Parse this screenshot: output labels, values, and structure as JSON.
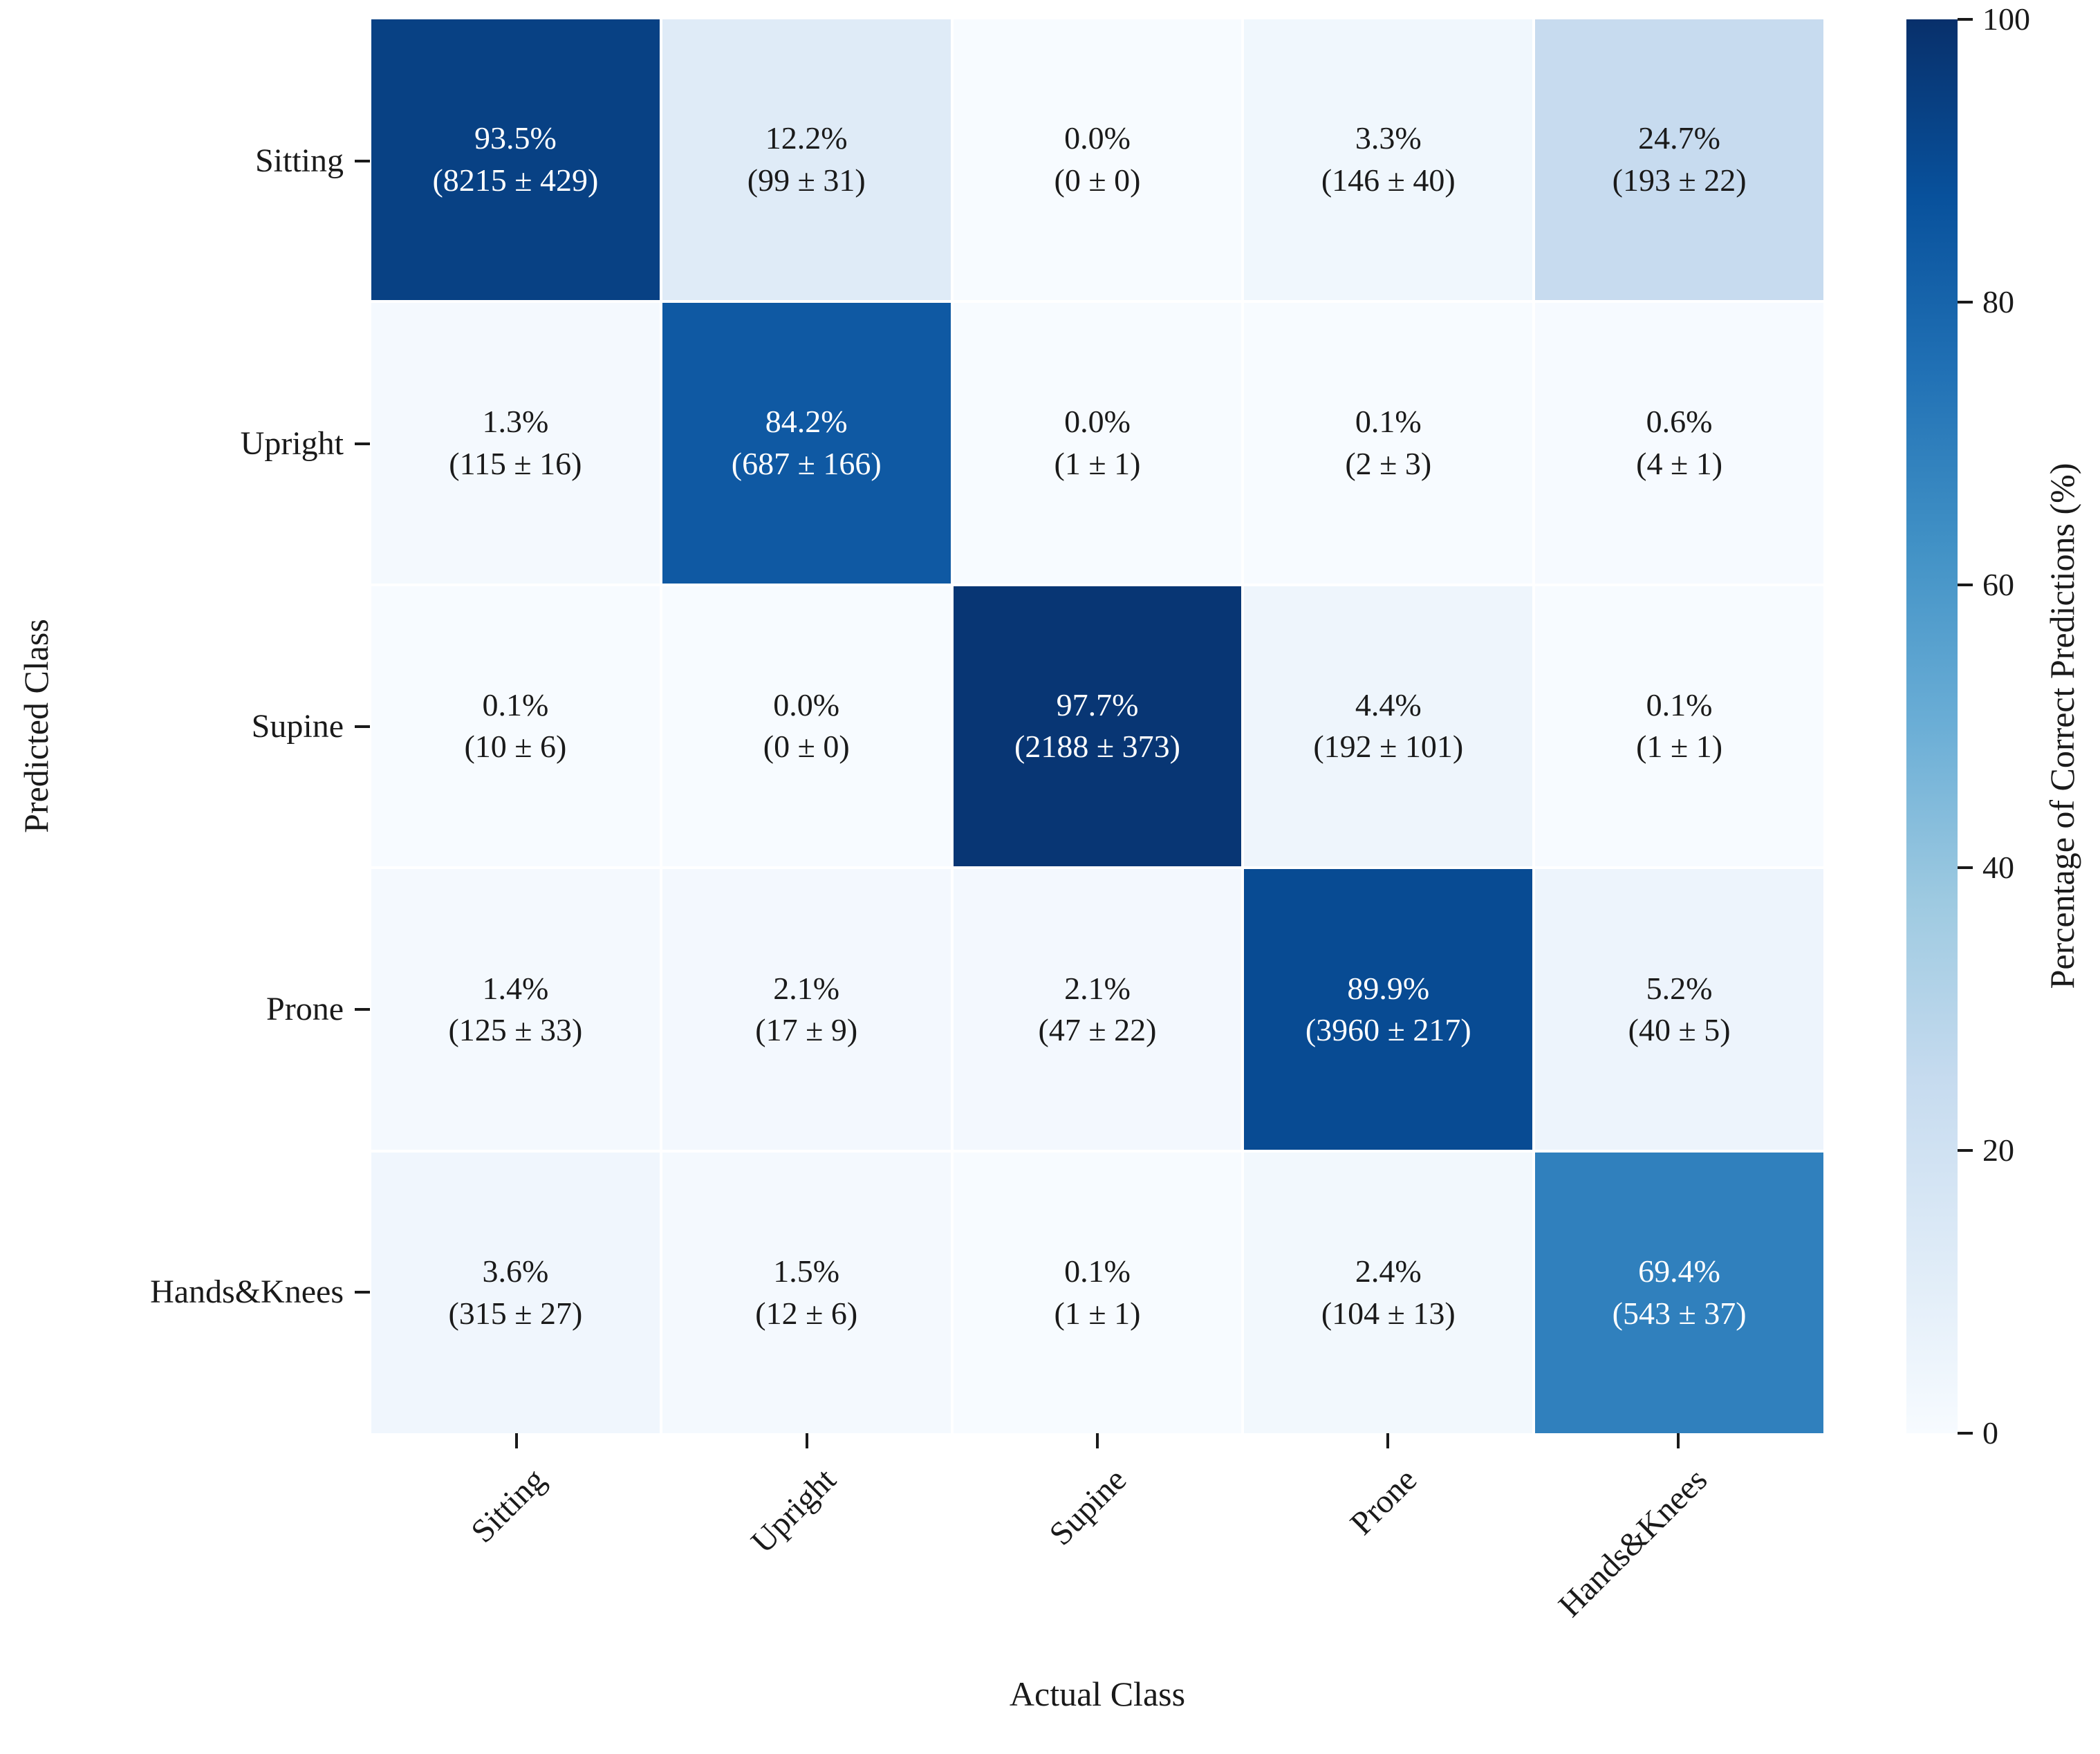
{
  "chart_data": {
    "type": "heatmap",
    "title": "",
    "xlabel": "Actual Class",
    "ylabel": "Predicted Class",
    "rows": [
      "Sitting",
      "Upright",
      "Supine",
      "Prone",
      "Hands&Knees"
    ],
    "cols": [
      "Sitting",
      "Upright",
      "Supine",
      "Prone",
      "Hands&Knees"
    ],
    "cell_value_format": "percent (count ± std)",
    "cells": [
      [
        [
          93.5,
          8215,
          429
        ],
        [
          12.2,
          99,
          31
        ],
        [
          0.0,
          0,
          0
        ],
        [
          3.3,
          146,
          40
        ],
        [
          24.7,
          193,
          22
        ]
      ],
      [
        [
          1.3,
          115,
          16
        ],
        [
          84.2,
          687,
          166
        ],
        [
          0.0,
          1,
          1
        ],
        [
          0.1,
          2,
          3
        ],
        [
          0.6,
          4,
          1
        ]
      ],
      [
        [
          0.1,
          10,
          6
        ],
        [
          0.0,
          0,
          0
        ],
        [
          97.7,
          2188,
          373
        ],
        [
          4.4,
          192,
          101
        ],
        [
          0.1,
          1,
          1
        ]
      ],
      [
        [
          1.4,
          125,
          33
        ],
        [
          2.1,
          17,
          9
        ],
        [
          2.1,
          47,
          22
        ],
        [
          89.9,
          3960,
          217
        ],
        [
          5.2,
          40,
          5
        ]
      ],
      [
        [
          3.6,
          315,
          27
        ],
        [
          1.5,
          12,
          6
        ],
        [
          0.1,
          1,
          1
        ],
        [
          2.4,
          104,
          13
        ],
        [
          69.4,
          543,
          37
        ]
      ]
    ],
    "value_range": [
      0,
      100
    ],
    "colormap_name": "Blues",
    "colormap_stops": [
      [
        0.0,
        "#f7fbff"
      ],
      [
        0.125,
        "#deebf7"
      ],
      [
        0.25,
        "#c6dbef"
      ],
      [
        0.375,
        "#9ecae1"
      ],
      [
        0.5,
        "#6baed6"
      ],
      [
        0.625,
        "#4292c6"
      ],
      [
        0.75,
        "#2171b5"
      ],
      [
        0.875,
        "#08519c"
      ],
      [
        1.0,
        "#08306b"
      ]
    ],
    "colorbar": {
      "label": "Percentage of Correct Predictions (%)",
      "ticks": [
        0,
        20,
        40,
        60,
        80,
        100
      ],
      "position": "right"
    },
    "text_colors": {
      "dark": "#1a1a1a",
      "light": "#ffffff"
    },
    "grid_line_color": "#ffffff",
    "legend": "none"
  }
}
